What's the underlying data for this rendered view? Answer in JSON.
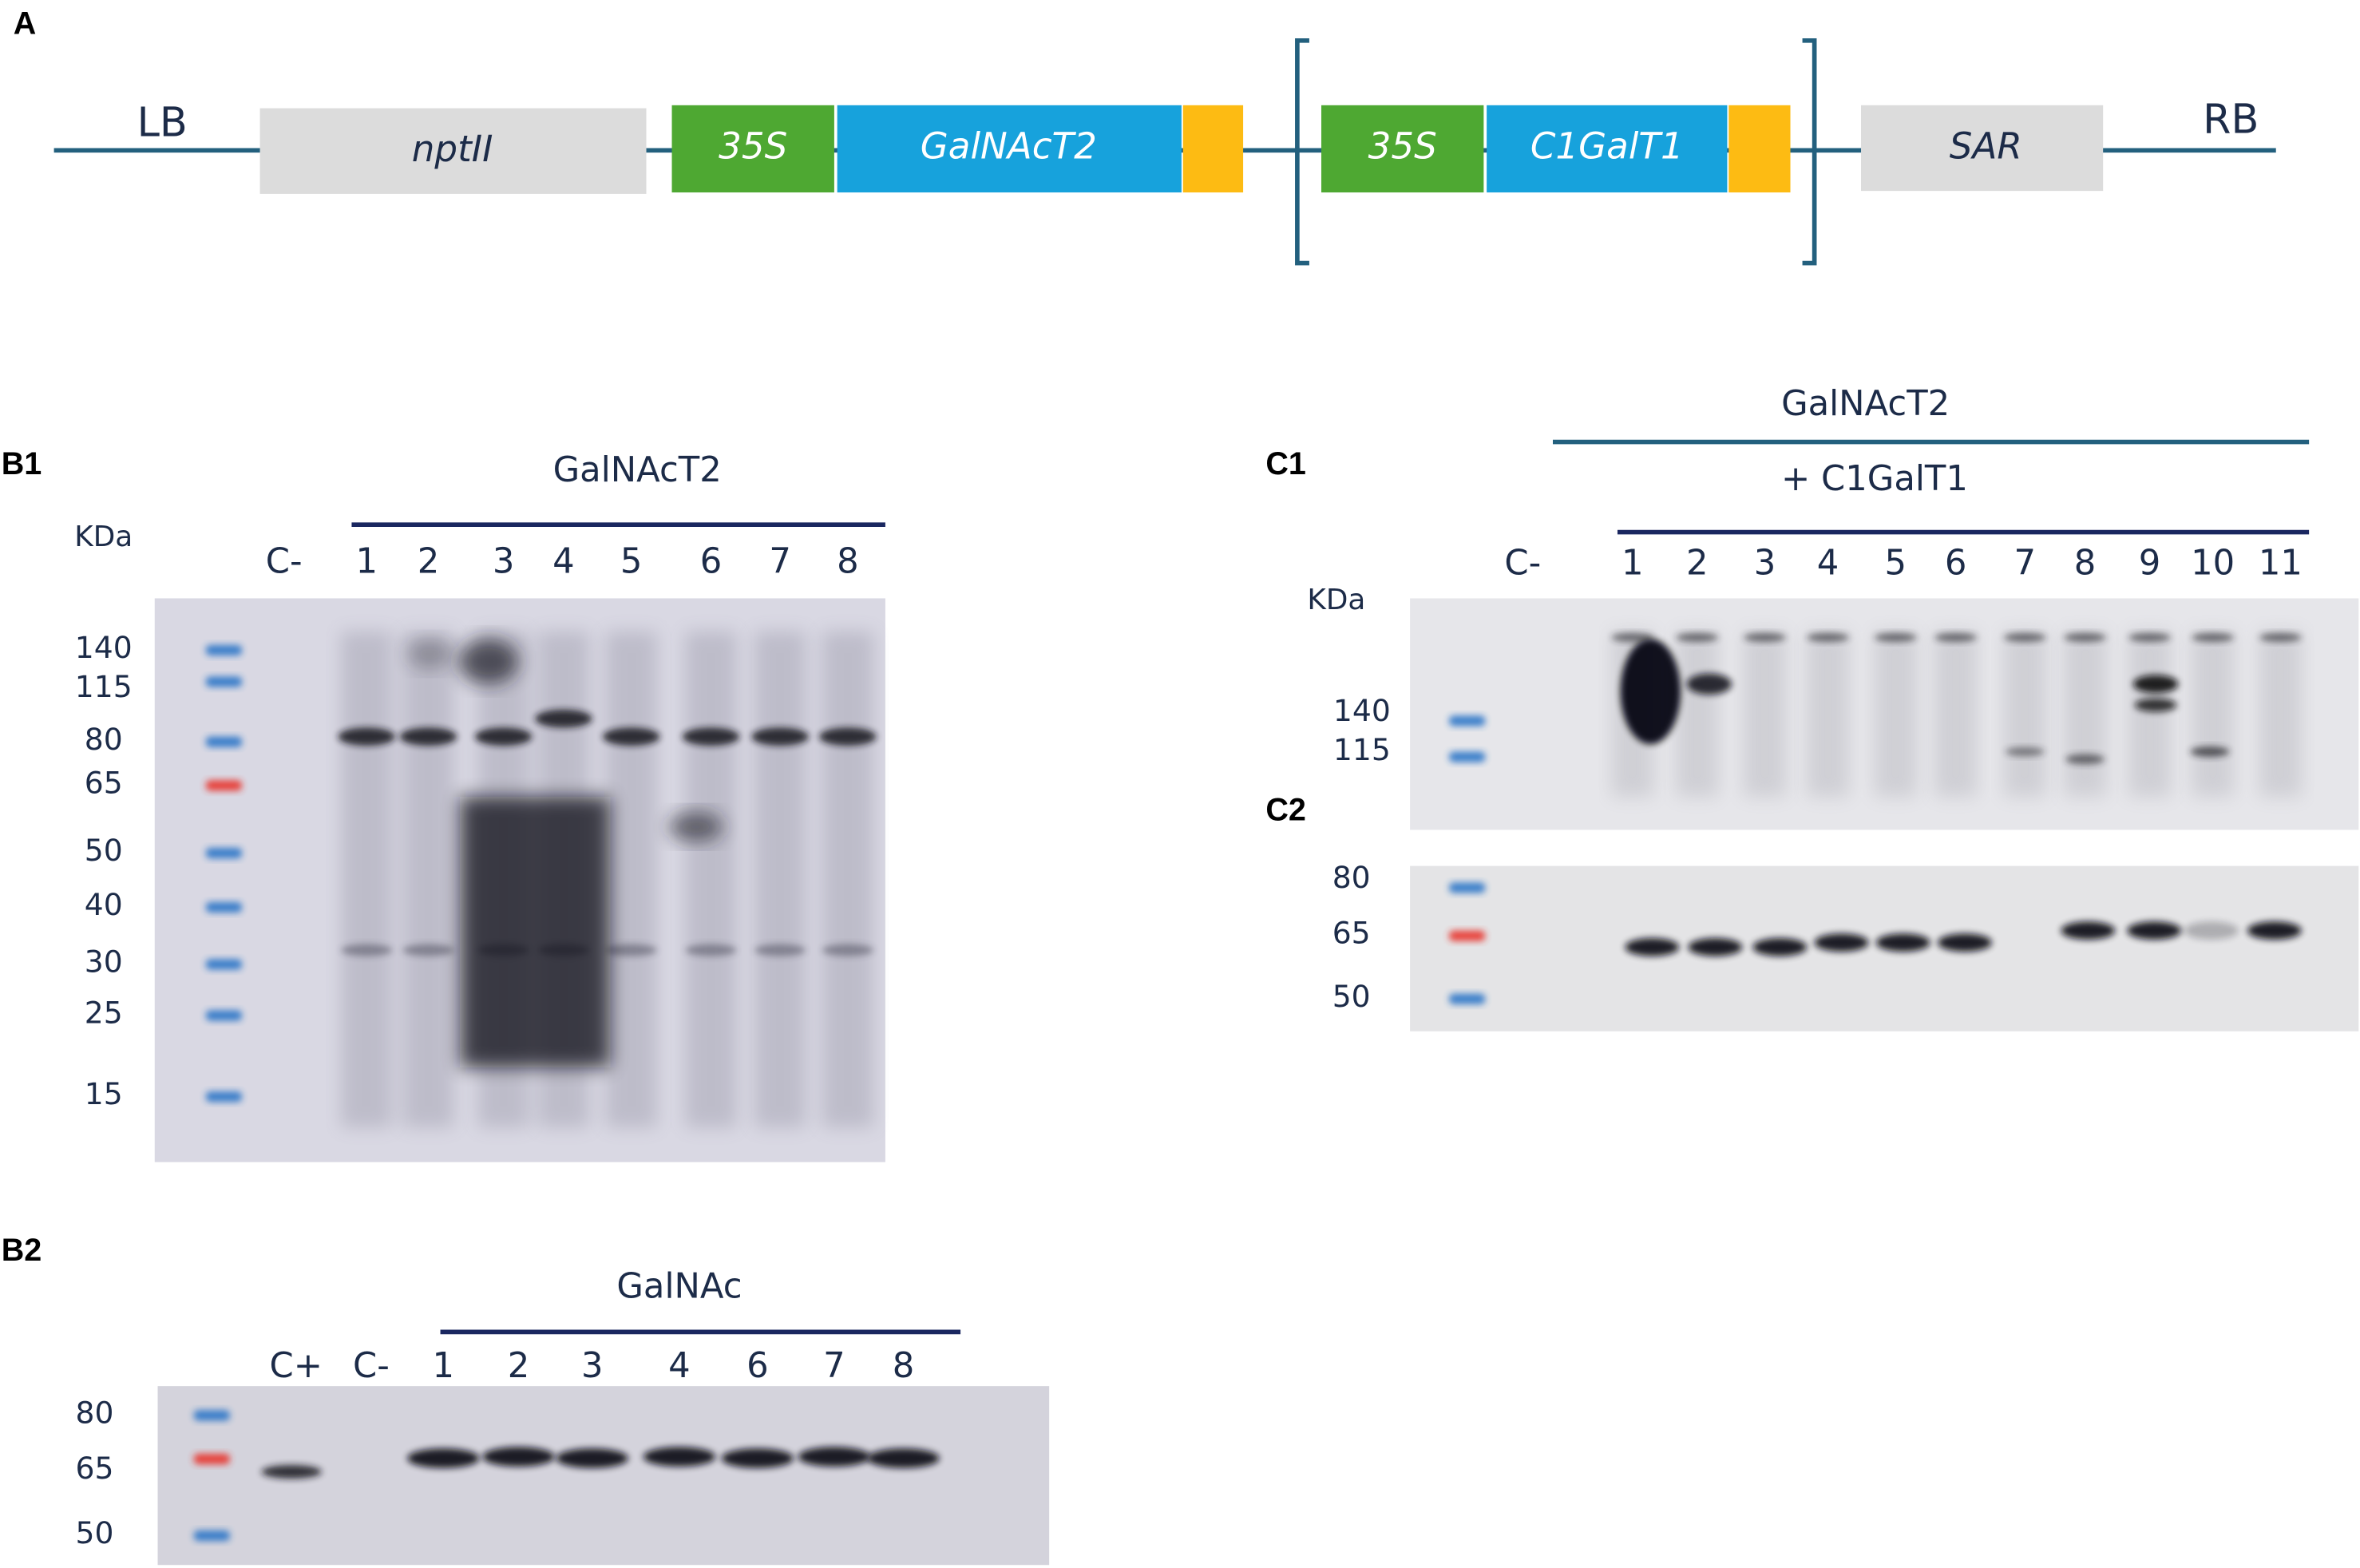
{
  "panel_a": {
    "label": "A",
    "left_border": "LB",
    "right_border": "RB",
    "elements": [
      "nptII",
      "35S",
      "GalNAcT2",
      "35S",
      "C1GalT1",
      "SAR"
    ]
  },
  "panel_b1": {
    "label": "B1",
    "unit": "KDa",
    "group": "GalNAcT2",
    "lanes": [
      "C-",
      "1",
      "2",
      "3",
      "4",
      "5",
      "6",
      "7",
      "8"
    ],
    "markers": [
      "140",
      "115",
      "80",
      "65",
      "50",
      "40",
      "30",
      "25",
      "15"
    ]
  },
  "panel_b2": {
    "label": "B2",
    "group": "GalNAc",
    "lanes": [
      "C+",
      "C-",
      "1",
      "2",
      "3",
      "4",
      "6",
      "7",
      "8"
    ],
    "markers": [
      "80",
      "65",
      "50"
    ]
  },
  "panel_c1": {
    "label": "C1",
    "group": "GalNAcT2",
    "subgroup": "+ C1GalT1",
    "unit": "KDa",
    "lanes": [
      "C-",
      "1",
      "2",
      "3",
      "4",
      "5",
      "6",
      "7",
      "8",
      "9",
      "10",
      "11"
    ],
    "markers": [
      "140",
      "115"
    ]
  },
  "panel_c2": {
    "label": "C2",
    "markers": [
      "80",
      "65",
      "50"
    ]
  }
}
